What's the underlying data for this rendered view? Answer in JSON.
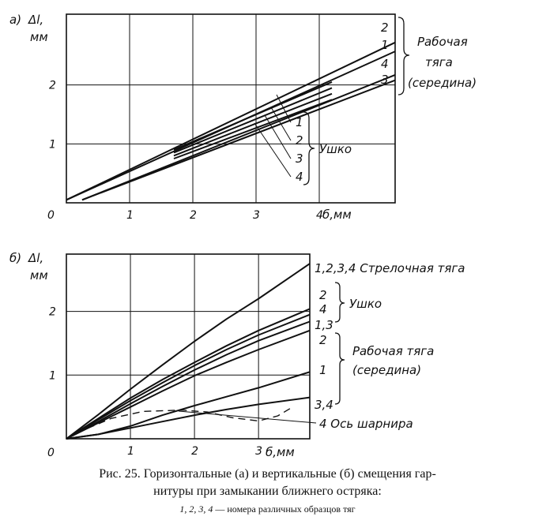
{
  "chart_data": [
    {
      "type": "line",
      "panel_label": "а)",
      "ylabel": "Δl,",
      "ylabel_unit": "мм",
      "xlabel": "б,мм",
      "origin_label": "0",
      "x_ticks": [
        "1",
        "2",
        "3",
        "4"
      ],
      "y_ticks": [
        "1",
        "2"
      ],
      "xlim": [
        0,
        5.2
      ],
      "ylim": [
        0,
        3.2
      ],
      "grid": true,
      "groups": [
        {
          "name": "Рабочая тяга (середина)",
          "label_lines": [
            "Рабочая",
            "тяга",
            "(середина)"
          ],
          "series": [
            {
              "name": "2",
              "x": [
                0,
                5.2
              ],
              "y": [
                0.05,
                2.72
              ]
            },
            {
              "name": "1",
              "x": [
                0,
                5.2
              ],
              "y": [
                0.05,
                2.57
              ]
            },
            {
              "name": "4",
              "x": [
                0.25,
                5.2
              ],
              "y": [
                0.05,
                2.17
              ]
            },
            {
              "name": "3",
              "x": [
                0.25,
                5.2
              ],
              "y": [
                0.05,
                2.08
              ]
            }
          ]
        },
        {
          "name": "Ушко",
          "series": [
            {
              "name": "1",
              "x": [
                1.7,
                4.2
              ],
              "y": [
                0.9,
                2.05
              ]
            },
            {
              "name": "2",
              "x": [
                1.7,
                4.2
              ],
              "y": [
                0.85,
                1.95
              ]
            },
            {
              "name": "3",
              "x": [
                1.7,
                4.2
              ],
              "y": [
                0.8,
                1.85
              ]
            },
            {
              "name": "4",
              "x": [
                1.7,
                4.2
              ],
              "y": [
                0.75,
                1.75
              ]
            }
          ]
        }
      ]
    },
    {
      "type": "line",
      "panel_label": "б)",
      "ylabel": "Δl,",
      "ylabel_unit": "мм",
      "xlabel": "б,мм",
      "origin_label": "0",
      "x_ticks": [
        "1",
        "2",
        "3"
      ],
      "y_ticks": [
        "1",
        "2"
      ],
      "xlim": [
        0,
        3.8
      ],
      "ylim": [
        0,
        2.9
      ],
      "grid": true,
      "groups": [
        {
          "name": "Стрелочная тяга",
          "label": "1,2,3,4 Стрелочная тяга",
          "series": [
            {
              "name": "1,2,3,4",
              "x": [
                0,
                0.5,
                1,
                1.5,
                2,
                2.5,
                3,
                3.8
              ],
              "y": [
                0,
                0.38,
                0.78,
                1.16,
                1.53,
                1.88,
                2.2,
                2.75
              ]
            }
          ]
        },
        {
          "name": "Ушко",
          "series": [
            {
              "name": "2",
              "x": [
                0,
                0.5,
                1,
                1.5,
                2,
                2.5,
                3,
                3.8
              ],
              "y": [
                0,
                0.32,
                0.64,
                0.93,
                1.2,
                1.46,
                1.7,
                2.04
              ]
            },
            {
              "name": "4",
              "x": [
                0,
                0.5,
                1,
                1.5,
                2,
                2.5,
                3,
                3.8
              ],
              "y": [
                0,
                0.3,
                0.6,
                0.88,
                1.15,
                1.4,
                1.63,
                1.95
              ]
            },
            {
              "name": "1,3",
              "x": [
                0,
                0.5,
                1,
                1.5,
                2,
                2.5,
                3,
                3.8
              ],
              "y": [
                0,
                0.27,
                0.55,
                0.82,
                1.08,
                1.32,
                1.54,
                1.84
              ]
            }
          ]
        },
        {
          "name": "Рабочая тяга (середина)",
          "label_lines": [
            "Рабочая тяга",
            "(середина)"
          ],
          "series": [
            {
              "name": "2",
              "x": [
                0,
                0.5,
                1,
                1.5,
                2,
                2.5,
                3,
                3.8
              ],
              "y": [
                0,
                0.25,
                0.5,
                0.75,
                0.99,
                1.2,
                1.4,
                1.7
              ]
            },
            {
              "name": "1",
              "x": [
                0,
                0.5,
                1,
                1.5,
                2,
                2.5,
                3,
                3.8
              ],
              "y": [
                0,
                0.07,
                0.2,
                0.37,
                0.52,
                0.66,
                0.8,
                1.05
              ]
            },
            {
              "name": "3,4",
              "x": [
                0,
                0.5,
                1,
                1.5,
                2,
                2.5,
                3,
                3.8
              ],
              "y": [
                0,
                0.07,
                0.17,
                0.27,
                0.37,
                0.46,
                0.54,
                0.65
              ]
            }
          ]
        },
        {
          "name": "Ось шарнира",
          "label": "4 Ось шарнира",
          "dashed": true,
          "series": [
            {
              "name": "4",
              "x": [
                0,
                0.3,
                0.7,
                1.2,
                1.8,
                2.2,
                2.6,
                3.0,
                3.3,
                3.5
              ],
              "y": [
                0,
                0.15,
                0.32,
                0.43,
                0.45,
                0.42,
                0.33,
                0.28,
                0.36,
                0.48
              ]
            }
          ]
        }
      ]
    }
  ],
  "caption": {
    "line1": "Рис. 25. Горизонтальные (а) и вертикальные (б) смещения гар-",
    "line2": "нитуры при замыкании ближнего остряка:",
    "line3_nums": "1, 2, 3, 4",
    "line3_text": " — номера различных образцов тяг"
  }
}
